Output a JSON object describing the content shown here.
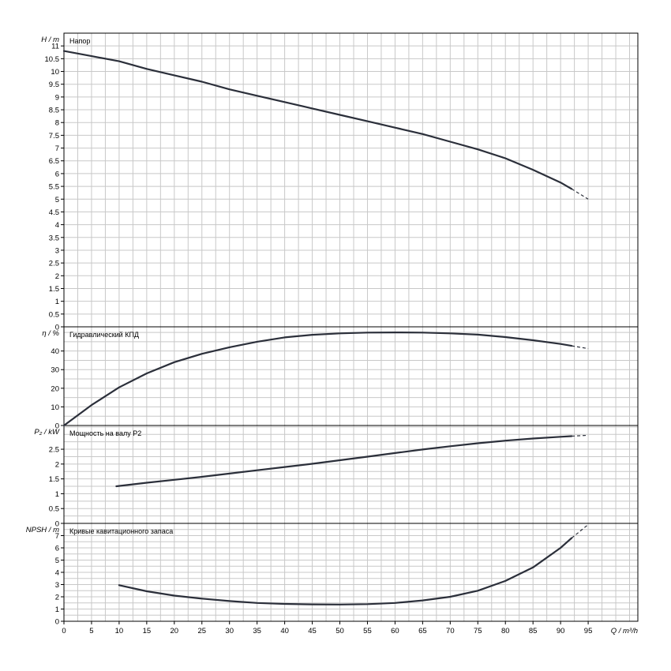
{
  "chart_data": {
    "type": "line",
    "x_axis": {
      "label": "Q / m³/h",
      "range": [
        0,
        104
      ],
      "ticks": [
        0,
        5,
        10,
        15,
        20,
        25,
        30,
        35,
        40,
        45,
        50,
        55,
        60,
        65,
        70,
        75,
        80,
        85,
        90,
        95
      ]
    },
    "grid": true,
    "panels": [
      {
        "id": "head",
        "title": "Напор",
        "ylabel": "H / m",
        "ylim": [
          0,
          11.5
        ],
        "yticks": [
          0,
          0.5,
          1,
          1.5,
          2,
          2.5,
          3,
          3.5,
          4,
          4.5,
          5,
          5.5,
          6,
          6.5,
          7,
          7.5,
          8,
          8.5,
          9,
          9.5,
          10,
          10.5,
          11
        ],
        "series": [
          {
            "x": [
              0,
              5,
              10,
              15,
              20,
              25,
              30,
              35,
              40,
              45,
              50,
              55,
              60,
              65,
              70,
              75,
              80,
              85,
              90,
              92
            ],
            "values": [
              10.8,
              10.6,
              10.4,
              10.1,
              9.85,
              9.6,
              9.3,
              9.05,
              8.8,
              8.55,
              8.3,
              8.05,
              7.8,
              7.55,
              7.25,
              6.95,
              6.6,
              6.15,
              5.65,
              5.4
            ]
          }
        ],
        "extrapolation": {
          "x": [
            92,
            95
          ],
          "values": [
            5.4,
            5.0
          ]
        }
      },
      {
        "id": "efficiency",
        "title": "Гидравлический КПД",
        "ylabel": "η / %",
        "ylim": [
          0,
          53
        ],
        "yticks": [
          0,
          10,
          20,
          30,
          40
        ],
        "series": [
          {
            "x": [
              0,
              5,
              10,
              15,
              20,
              25,
              30,
              35,
              40,
              45,
              50,
              55,
              60,
              65,
              70,
              75,
              80,
              85,
              90,
              92
            ],
            "values": [
              0,
              11,
              20.5,
              28,
              34,
              38.5,
              42,
              45,
              47.3,
              48.7,
              49.5,
              49.9,
              50,
              49.9,
              49.5,
              48.8,
              47.5,
              45.8,
              43.8,
              42.8
            ]
          }
        ],
        "extrapolation": {
          "x": [
            92,
            95
          ],
          "values": [
            42.8,
            41.3
          ]
        }
      },
      {
        "id": "power",
        "title": "Мощность на валу P2",
        "ylabel": "P₂ / kW",
        "ylim": [
          0,
          3.3
        ],
        "yticks": [
          0,
          0.5,
          1,
          1.5,
          2,
          2.5
        ],
        "series": [
          {
            "x": [
              9.5,
              15,
              20,
              25,
              30,
              35,
              40,
              45,
              50,
              55,
              60,
              65,
              70,
              75,
              80,
              85,
              90,
              92
            ],
            "values": [
              1.25,
              1.37,
              1.47,
              1.57,
              1.68,
              1.79,
              1.9,
              2.01,
              2.13,
              2.25,
              2.37,
              2.49,
              2.6,
              2.7,
              2.79,
              2.86,
              2.92,
              2.94
            ]
          }
        ],
        "extrapolation": {
          "x": [
            92,
            95
          ],
          "values": [
            2.94,
            2.97
          ]
        }
      },
      {
        "id": "npsh",
        "title": "Кривые кавитационного запаса",
        "ylabel": "NPSH / m",
        "ylim": [
          0,
          8
        ],
        "yticks": [
          0,
          1,
          2,
          3,
          4,
          5,
          6,
          7
        ],
        "series": [
          {
            "x": [
              10,
              15,
              20,
              25,
              30,
              35,
              40,
              45,
              50,
              55,
              60,
              65,
              70,
              75,
              80,
              85,
              90,
              92
            ],
            "values": [
              2.95,
              2.45,
              2.1,
              1.85,
              1.65,
              1.5,
              1.42,
              1.38,
              1.37,
              1.4,
              1.5,
              1.7,
              2.0,
              2.5,
              3.3,
              4.4,
              6.0,
              6.8
            ]
          }
        ],
        "extrapolation": {
          "x": [
            92,
            95
          ],
          "values": [
            6.8,
            7.9
          ]
        }
      }
    ]
  }
}
